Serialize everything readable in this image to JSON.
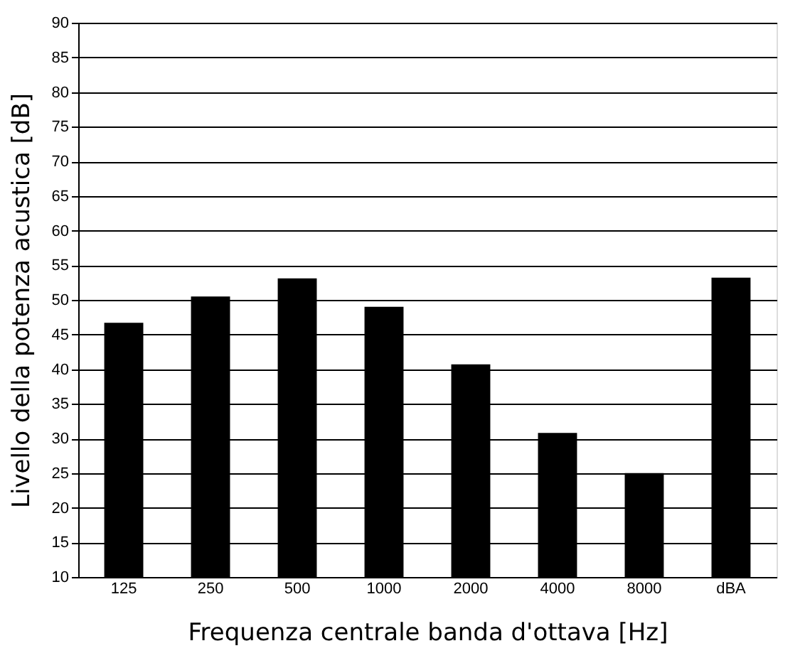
{
  "chart_data": {
    "type": "bar",
    "xlabel": "Frequenza centrale banda d'ottava [Hz]",
    "ylabel": "Livello della potenza acustica [dB]",
    "categories": [
      "125",
      "250",
      "500",
      "1000",
      "2000",
      "4000",
      "8000",
      "dBA"
    ],
    "values": [
      46.7,
      50.5,
      53.1,
      49.0,
      40.7,
      30.8,
      25.0,
      53.2
    ],
    "color": "#000000",
    "ylim": [
      10,
      90
    ],
    "yticks": [
      10,
      15,
      20,
      25,
      30,
      35,
      40,
      45,
      50,
      55,
      60,
      65,
      70,
      75,
      80,
      85,
      90
    ],
    "grid": "y"
  }
}
